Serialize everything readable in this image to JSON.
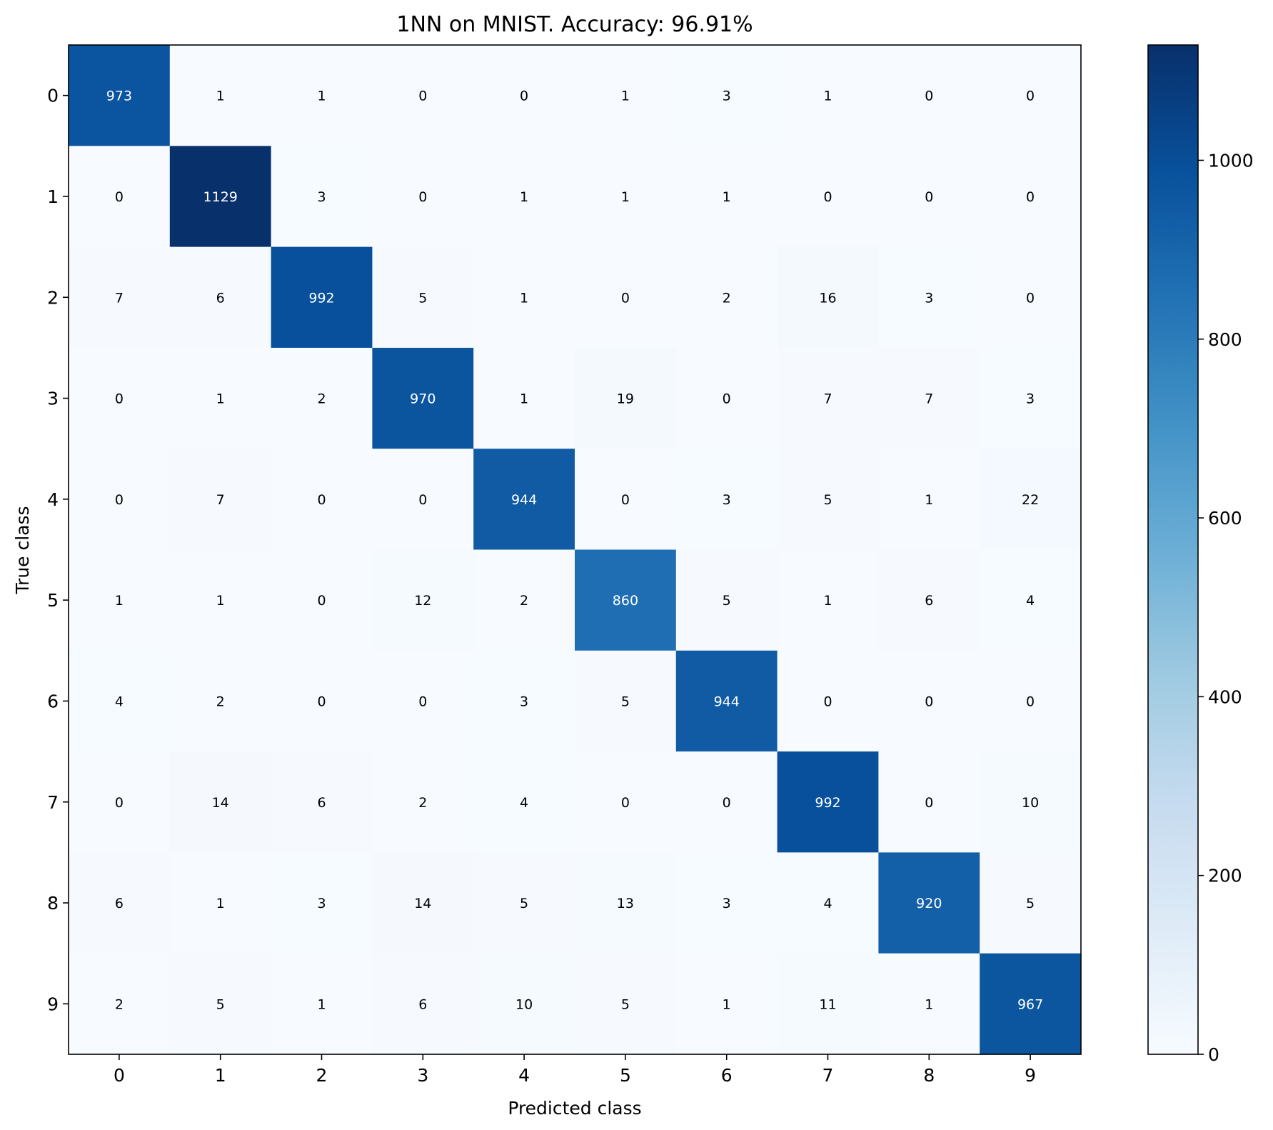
{
  "chart_data": {
    "type": "heatmap",
    "title": "1NN on MNIST. Accuracy: 96.91%",
    "xlabel": "Predicted class",
    "ylabel": "True class",
    "x_tick_labels": [
      "0",
      "1",
      "2",
      "3",
      "4",
      "5",
      "6",
      "7",
      "8",
      "9"
    ],
    "y_tick_labels": [
      "0",
      "1",
      "2",
      "3",
      "4",
      "5",
      "6",
      "7",
      "8",
      "9"
    ],
    "matrix": [
      [
        973,
        1,
        1,
        0,
        0,
        1,
        3,
        1,
        0,
        0
      ],
      [
        0,
        1129,
        3,
        0,
        1,
        1,
        1,
        0,
        0,
        0
      ],
      [
        7,
        6,
        992,
        5,
        1,
        0,
        2,
        16,
        3,
        0
      ],
      [
        0,
        1,
        2,
        970,
        1,
        19,
        0,
        7,
        7,
        3
      ],
      [
        0,
        7,
        0,
        0,
        944,
        0,
        3,
        5,
        1,
        22
      ],
      [
        1,
        1,
        0,
        12,
        2,
        860,
        5,
        1,
        6,
        4
      ],
      [
        4,
        2,
        0,
        0,
        3,
        5,
        944,
        0,
        0,
        0
      ],
      [
        0,
        14,
        6,
        2,
        4,
        0,
        0,
        992,
        0,
        10
      ],
      [
        6,
        1,
        3,
        14,
        5,
        13,
        3,
        4,
        920,
        5
      ],
      [
        2,
        5,
        1,
        6,
        10,
        5,
        1,
        11,
        1,
        967
      ]
    ],
    "colormap": "Blues",
    "colorbar": {
      "range": [
        0,
        1129
      ],
      "ticks": [
        0,
        200,
        400,
        600,
        800,
        1000
      ]
    },
    "grid": false,
    "legend": "none"
  }
}
